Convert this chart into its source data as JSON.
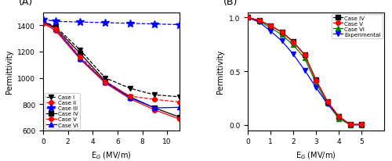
{
  "panel_A": {
    "title": "(A)",
    "xlabel": "E$_G$ (MV/m)",
    "ylabel": "Permittivity",
    "xlim": [
      0,
      11
    ],
    "ylim": [
      600,
      1500
    ],
    "yticks": [
      600,
      800,
      1000,
      1200,
      1400
    ],
    "xticks": [
      0,
      2,
      4,
      6,
      8,
      10
    ],
    "series": {
      "Case I": {
        "x": [
          0,
          1,
          3,
          5,
          7,
          9,
          11
        ],
        "y": [
          1430,
          1390,
          1210,
          1000,
          920,
          870,
          855
        ],
        "color": "black",
        "linestyle": "--",
        "marker": "v",
        "markersize": 4,
        "zorder": 3
      },
      "Case II": {
        "x": [
          0,
          1,
          3,
          5,
          7,
          9,
          11
        ],
        "y": [
          1420,
          1375,
          1160,
          970,
          860,
          835,
          815
        ],
        "color": "red",
        "linestyle": "--",
        "marker": "o",
        "markersize": 4,
        "zorder": 3
      },
      "Case III": {
        "x": [
          0,
          1,
          3,
          5,
          7,
          9,
          11
        ],
        "y": [
          1445,
          1430,
          1425,
          1420,
          1415,
          1410,
          1405
        ],
        "color": "blue",
        "linestyle": "--",
        "marker": "*",
        "markersize": 7,
        "zorder": 4
      },
      "Case IV": {
        "x": [
          0,
          1,
          3,
          5,
          7,
          9,
          11
        ],
        "y": [
          1430,
          1380,
          1185,
          975,
          855,
          770,
          700
        ],
        "color": "black",
        "linestyle": "-",
        "marker": "s",
        "markersize": 4,
        "zorder": 2
      },
      "Case V": {
        "x": [
          0,
          1,
          3,
          5,
          7,
          9,
          11
        ],
        "y": [
          1415,
          1360,
          1140,
          960,
          840,
          755,
          685
        ],
        "color": "red",
        "linestyle": "-",
        "marker": "o",
        "markersize": 4,
        "zorder": 2
      },
      "Case VI": {
        "x": [
          0,
          1,
          3,
          5,
          7,
          9,
          11
        ],
        "y": [
          1425,
          1372,
          1148,
          968,
          848,
          770,
          775
        ],
        "color": "blue",
        "linestyle": "-",
        "marker": "^",
        "markersize": 4,
        "zorder": 2
      }
    }
  },
  "panel_B": {
    "title": "(B)",
    "xlabel": "E$_G$ (MV/m)",
    "ylabel": "Permittivity",
    "xlim": [
      0,
      6
    ],
    "ylim": [
      -0.05,
      1.05
    ],
    "yticks": [
      0.0,
      0.5,
      1.0
    ],
    "xticks": [
      0,
      1,
      2,
      3,
      4,
      5
    ],
    "series": {
      "Case IV": {
        "x": [
          0,
          0.5,
          1.0,
          1.5,
          2.0,
          2.5,
          3.0,
          3.5,
          4.0,
          4.5,
          5.0
        ],
        "y": [
          1.0,
          0.975,
          0.925,
          0.865,
          0.775,
          0.655,
          0.42,
          0.22,
          0.08,
          0.005,
          0.005
        ],
        "color": "black",
        "linestyle": "-",
        "marker": "s",
        "markersize": 4,
        "zorder": 3
      },
      "Case V": {
        "x": [
          0,
          0.5,
          1.0,
          1.5,
          2.0,
          2.5,
          3.0,
          3.5,
          4.0,
          4.5,
          5.0
        ],
        "y": [
          1.0,
          0.975,
          0.922,
          0.862,
          0.772,
          0.651,
          0.415,
          0.218,
          0.077,
          0.003,
          0.003
        ],
        "color": "red",
        "linestyle": "-",
        "marker": "o",
        "markersize": 4,
        "zorder": 3
      },
      "Case VI": {
        "x": [
          0,
          0.5,
          1.0,
          1.5,
          2.0,
          2.5,
          3.0,
          3.5,
          4.0,
          4.5,
          5.0
        ],
        "y": [
          1.0,
          0.968,
          0.905,
          0.84,
          0.745,
          0.622,
          0.39,
          0.2,
          0.06,
          0.002,
          0.002
        ],
        "color": "green",
        "linestyle": "-",
        "marker": "^",
        "markersize": 4,
        "zorder": 2
      },
      "Experimental": {
        "x": [
          0,
          0.5,
          1.0,
          1.5,
          2.0,
          2.5,
          3.0,
          3.5,
          4.0,
          4.5,
          5.0
        ],
        "y": [
          1.0,
          0.958,
          0.875,
          0.782,
          0.658,
          0.51,
          0.35,
          0.195,
          0.08,
          0.0,
          0.0
        ],
        "color": "blue",
        "linestyle": "-",
        "marker": "v",
        "markersize": 4,
        "zorder": 2
      }
    }
  }
}
